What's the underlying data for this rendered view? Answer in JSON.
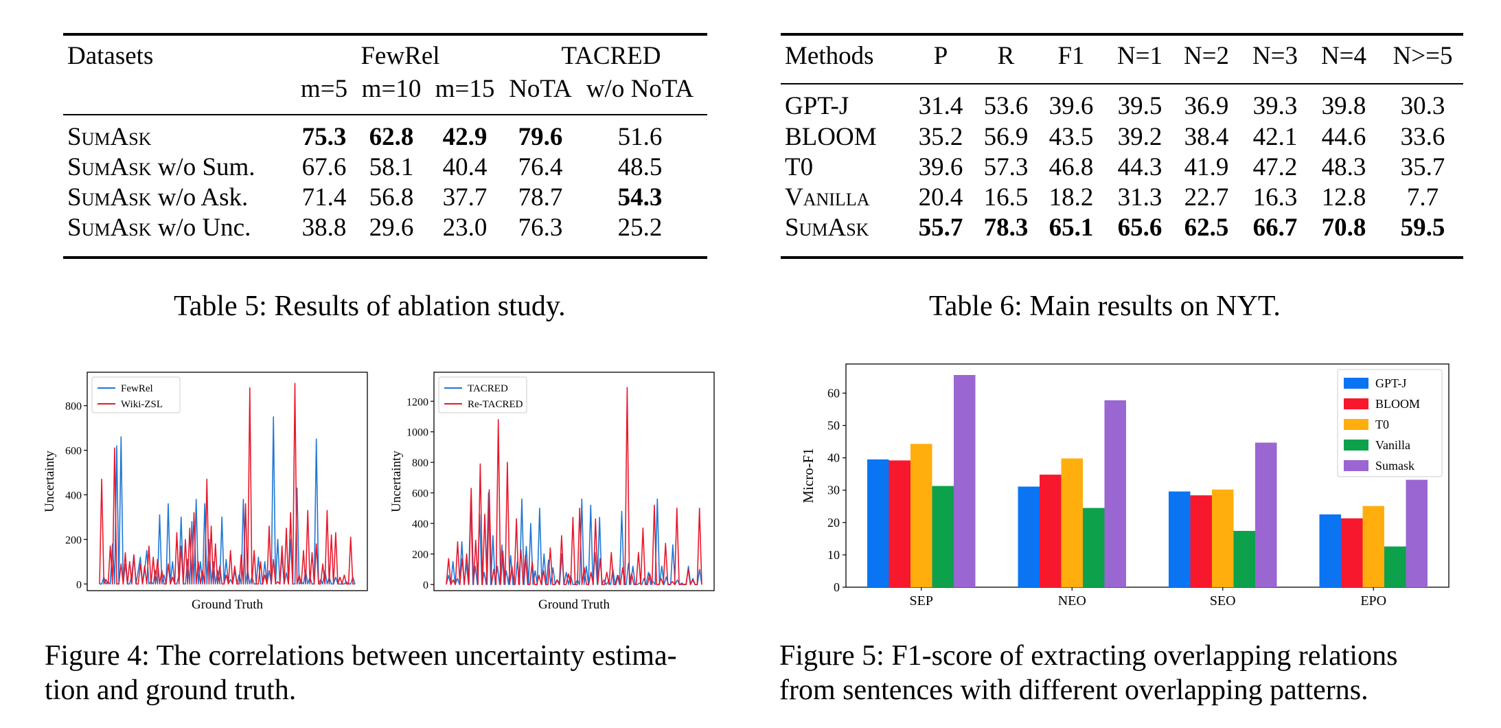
{
  "table5": {
    "header": {
      "datasets": "Datasets",
      "fewrel": "FewRel",
      "tacred": "TACRED",
      "sub": [
        "m=5",
        "m=10",
        "m=15",
        "NoTA",
        "w/o NoTA"
      ]
    },
    "rows": [
      {
        "method": "SumAsk",
        "suffix": "",
        "values": [
          "75.3",
          "62.8",
          "42.9",
          "79.6",
          "51.6"
        ],
        "bold": [
          true,
          true,
          true,
          true,
          false
        ]
      },
      {
        "method": "SumAsk",
        "suffix": " w/o Sum.",
        "values": [
          "67.6",
          "58.1",
          "40.4",
          "76.4",
          "48.5"
        ],
        "bold": [
          false,
          false,
          false,
          false,
          false
        ]
      },
      {
        "method": "SumAsk",
        "suffix": " w/o Ask.",
        "values": [
          "71.4",
          "56.8",
          "37.7",
          "78.7",
          "54.3"
        ],
        "bold": [
          false,
          false,
          false,
          false,
          true
        ]
      },
      {
        "method": "SumAsk",
        "suffix": " w/o Unc.",
        "values": [
          "38.8",
          "29.6",
          "23.0",
          "76.3",
          "25.2"
        ],
        "bold": [
          false,
          false,
          false,
          false,
          false
        ]
      }
    ],
    "caption": "Table 5: Results of ablation study."
  },
  "table6": {
    "header": [
      "Methods",
      "P",
      "R",
      "F1",
      "N=1",
      "N=2",
      "N=3",
      "N=4",
      "N>=5"
    ],
    "rows": [
      {
        "method": "GPT-J",
        "smallcaps": false,
        "bold": false,
        "values": [
          "31.4",
          "53.6",
          "39.6",
          "39.5",
          "36.9",
          "39.3",
          "39.8",
          "30.3"
        ]
      },
      {
        "method": "BLOOM",
        "smallcaps": false,
        "bold": false,
        "values": [
          "35.2",
          "56.9",
          "43.5",
          "39.2",
          "38.4",
          "42.1",
          "44.6",
          "33.6"
        ]
      },
      {
        "method": "T0",
        "smallcaps": false,
        "bold": false,
        "values": [
          "39.6",
          "57.3",
          "46.8",
          "44.3",
          "41.9",
          "47.2",
          "48.3",
          "35.7"
        ]
      },
      {
        "method": "Vanilla",
        "smallcaps": true,
        "bold": false,
        "values": [
          "20.4",
          "16.5",
          "18.2",
          "31.3",
          "22.7",
          "16.3",
          "12.8",
          "7.7"
        ]
      },
      {
        "method": "SumAsk",
        "smallcaps": true,
        "bold": true,
        "values": [
          "55.7",
          "78.3",
          "65.1",
          "65.6",
          "62.5",
          "66.7",
          "70.8",
          "59.5"
        ]
      }
    ],
    "caption": "Table 6: Main results on NYT."
  },
  "figure4": {
    "caption_line1": "Figure 4: The correlations between uncertainty estima-",
    "caption_line2": "tion and ground truth."
  },
  "figure5": {
    "caption_line1": "Figure 5: F1-score of extracting overlapping relations",
    "caption_line2": "from sentences with different overlapping patterns."
  },
  "chart_data": [
    {
      "type": "line",
      "title": "",
      "xlabel": "Ground Truth",
      "ylabel": "Uncertainty",
      "yticks": [
        "0",
        "200",
        "400",
        "600",
        "800"
      ],
      "ylim": [
        -30,
        950
      ],
      "legend_position": "top-left",
      "series": [
        {
          "name": "FewRel",
          "color": "#1f77d4",
          "values": [
            0,
            0,
            30,
            0,
            10,
            0,
            180,
            0,
            620,
            0,
            660,
            0,
            90,
            0,
            0,
            40,
            130,
            0,
            60,
            120,
            0,
            60,
            150,
            0,
            10,
            0,
            60,
            0,
            310,
            0,
            40,
            0,
            360,
            0,
            100,
            0,
            0,
            40,
            300,
            0,
            0,
            110,
            0,
            280,
            0,
            380,
            0,
            100,
            0,
            360,
            0,
            200,
            0,
            100,
            0,
            60,
            0,
            300,
            0,
            110,
            0,
            20,
            0,
            60,
            0,
            40,
            0,
            380,
            0,
            60,
            0,
            30,
            0,
            0,
            120,
            0,
            0,
            100,
            0,
            60,
            0,
            750,
            0,
            200,
            0,
            130,
            0,
            50,
            0,
            200,
            0,
            0,
            430,
            0,
            10,
            0,
            60,
            0,
            30,
            0,
            0,
            650,
            0,
            20,
            0,
            60,
            0,
            30,
            0,
            0,
            30,
            0,
            0,
            0,
            0,
            10,
            0,
            0,
            30,
            0
          ]
        },
        {
          "name": "Wiki-ZSL",
          "color": "#e8182b",
          "values": [
            0,
            470,
            0,
            20,
            0,
            170,
            0,
            610,
            0,
            0,
            90,
            0,
            140,
            0,
            100,
            0,
            130,
            0,
            0,
            90,
            0,
            80,
            0,
            170,
            0,
            120,
            0,
            110,
            0,
            60,
            0,
            0,
            90,
            0,
            30,
            0,
            230,
            0,
            170,
            0,
            200,
            0,
            250,
            0,
            320,
            0,
            100,
            0,
            60,
            0,
            470,
            0,
            260,
            0,
            180,
            0,
            80,
            0,
            0,
            40,
            0,
            150,
            0,
            80,
            0,
            0,
            130,
            0,
            360,
            0,
            880,
            0,
            150,
            0,
            0,
            100,
            0,
            40,
            0,
            260,
            0,
            110,
            0,
            10,
            0,
            170,
            0,
            250,
            0,
            320,
            0,
            900,
            0,
            40,
            0,
            150,
            0,
            330,
            0,
            140,
            0,
            180,
            0,
            0,
            90,
            0,
            330,
            0,
            220,
            0,
            230,
            0,
            30,
            0,
            40,
            0,
            0,
            210,
            0,
            0
          ]
        }
      ]
    },
    {
      "type": "line",
      "title": "",
      "xlabel": "Ground Truth",
      "ylabel": "Uncertainty",
      "yticks": [
        "0",
        "200",
        "400",
        "600",
        "800",
        "1000",
        "1200"
      ],
      "ylim": [
        -40,
        1390
      ],
      "legend_position": "top-left",
      "series": [
        {
          "name": "TACRED",
          "color": "#1f77d4",
          "values": [
            0,
            60,
            0,
            150,
            0,
            40,
            0,
            280,
            0,
            140,
            0,
            550,
            0,
            120,
            0,
            460,
            0,
            80,
            0,
            600,
            0,
            320,
            0,
            120,
            0,
            260,
            0,
            90,
            0,
            190,
            0,
            0,
            150,
            0,
            560,
            0,
            250,
            0,
            400,
            0,
            90,
            0,
            500,
            0,
            200,
            0,
            160,
            0,
            110,
            0,
            30,
            0,
            200,
            0,
            80,
            0,
            60,
            0,
            0,
            30,
            0,
            560,
            0,
            120,
            0,
            520,
            0,
            210,
            0,
            440,
            0,
            30,
            0,
            20,
            0,
            100,
            0,
            60,
            0,
            480,
            0,
            0,
            140,
            0,
            120,
            0,
            0,
            10,
            0,
            40,
            0,
            80,
            0,
            20,
            0,
            560,
            0,
            120,
            0,
            50,
            0,
            0,
            260,
            0,
            30,
            0,
            10,
            0,
            0,
            120,
            0,
            40,
            0,
            0,
            100,
            0
          ]
        },
        {
          "name": "Re-TACRED",
          "color": "#e8182b",
          "values": [
            0,
            170,
            0,
            30,
            0,
            280,
            0,
            170,
            0,
            200,
            0,
            630,
            0,
            290,
            0,
            790,
            0,
            460,
            0,
            620,
            0,
            100,
            0,
            1080,
            0,
            220,
            0,
            800,
            0,
            120,
            0,
            430,
            0,
            230,
            0,
            190,
            0,
            0,
            150,
            0,
            0,
            60,
            0,
            90,
            0,
            0,
            240,
            0,
            0,
            30,
            0,
            320,
            0,
            0,
            70,
            0,
            440,
            0,
            0,
            500,
            0,
            110,
            0,
            0,
            80,
            0,
            430,
            0,
            170,
            0,
            0,
            80,
            0,
            210,
            0,
            0,
            60,
            0,
            110,
            0,
            1290,
            0,
            70,
            0,
            0,
            210,
            0,
            370,
            0,
            0,
            70,
            0,
            520,
            0,
            0,
            40,
            0,
            270,
            0,
            0,
            20,
            0,
            500,
            0,
            0,
            0,
            0,
            100,
            0,
            30,
            0,
            0,
            500,
            0
          ]
        }
      ]
    },
    {
      "type": "bar",
      "title": "",
      "xlabel": "",
      "ylabel": "Micro-F1",
      "categories": [
        "SEP",
        "NEO",
        "SEO",
        "EPO"
      ],
      "ylim": [
        0,
        69
      ],
      "yticks": [
        0,
        10,
        20,
        30,
        40,
        50,
        60
      ],
      "legend_position": "top-right",
      "series": [
        {
          "name": "GPT-J",
          "color": "#0b74f2",
          "values": [
            39.5,
            31.1,
            29.6,
            22.5
          ]
        },
        {
          "name": "BLOOM",
          "color": "#f7182e",
          "values": [
            39.2,
            34.8,
            28.4,
            21.3
          ]
        },
        {
          "name": "T0",
          "color": "#ffae0e",
          "values": [
            44.3,
            39.8,
            30.2,
            25.1
          ]
        },
        {
          "name": "Vanilla",
          "color": "#0ea14c",
          "values": [
            31.3,
            24.5,
            17.4,
            12.6
          ]
        },
        {
          "name": "Sumask",
          "color": "#9a66d1",
          "values": [
            65.6,
            57.8,
            44.7,
            33.2
          ]
        }
      ]
    }
  ]
}
